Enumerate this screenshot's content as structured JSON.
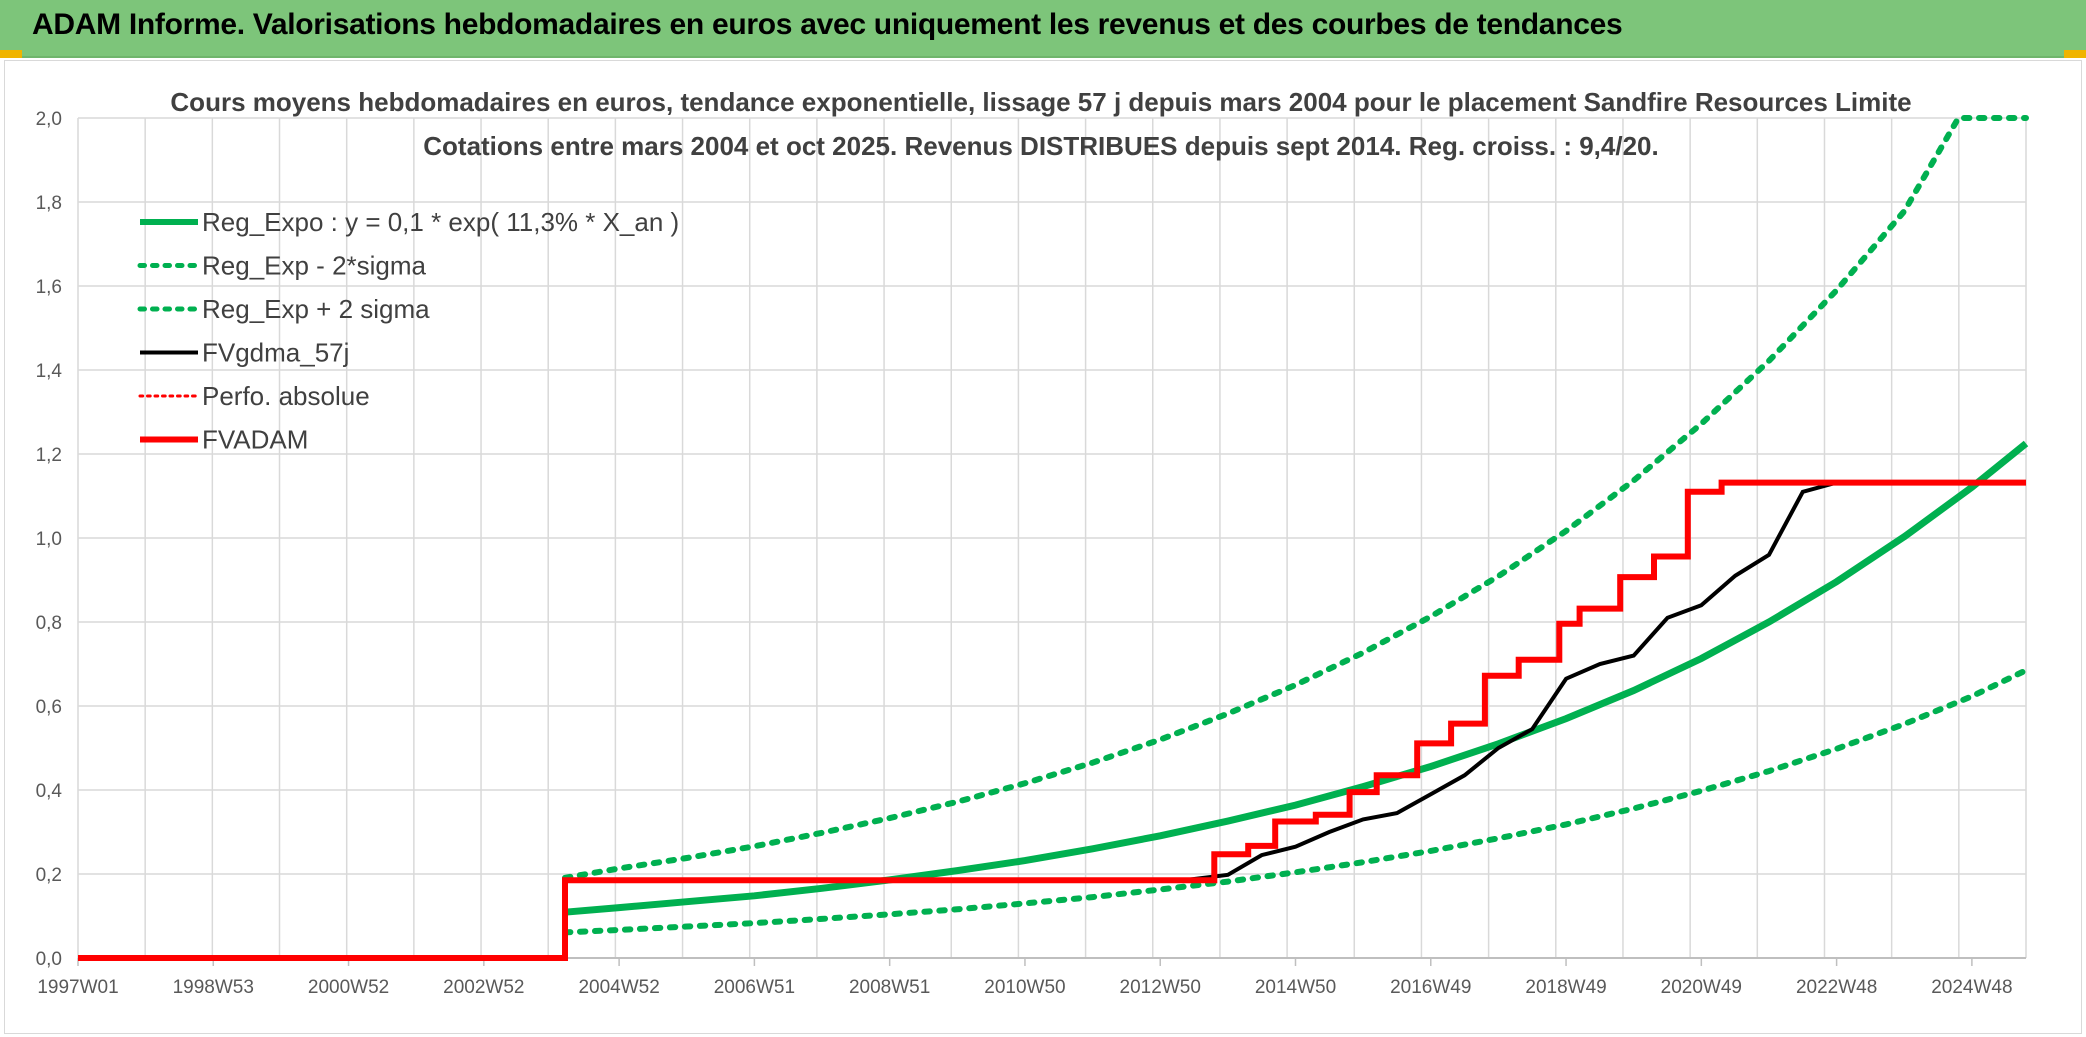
{
  "banner": {
    "title": "ADAM Informe. Valorisations hebdomadaires en euros avec uniquement les revenus et des courbes de tendances"
  },
  "colors": {
    "banner_bg": "#7dc57a",
    "trend_green": "#00b050",
    "fvgdma_black": "#000000",
    "fvadam_red": "#ff0000",
    "grid": "#d9d9d9"
  },
  "chart_data": {
    "type": "line",
    "title_lines": [
      "Cours moyens hebdomadaires en euros, tendance exponentielle, lissage 57 j depuis mars 2004 pour le placement Sandfire Resources Limite",
      "Cotations entre mars 2004 et oct 2025. Revenus DISTRIBUES depuis sept 2014. Reg. croiss. : 9,4/20."
    ],
    "xlim": [
      1997.0,
      2025.8
    ],
    "ylim": [
      0,
      2.0
    ],
    "y_ticks": [
      0.0,
      0.2,
      0.4,
      0.6,
      0.8,
      1.0,
      1.2,
      1.4,
      1.6,
      1.8,
      2.0
    ],
    "y_tick_labels": [
      "0,0",
      "0,2",
      "0,4",
      "0,6",
      "0,8",
      "1,0",
      "1,2",
      "1,4",
      "1,6",
      "1,8",
      "2,0"
    ],
    "x_ticks": [
      {
        "x": 1997.0,
        "label": "1997W01"
      },
      {
        "x": 1999.0,
        "label": "1998W53"
      },
      {
        "x": 2001.0,
        "label": "2000W52"
      },
      {
        "x": 2003.0,
        "label": "2002W52"
      },
      {
        "x": 2005.0,
        "label": "2004W52"
      },
      {
        "x": 2007.0,
        "label": "2006W51"
      },
      {
        "x": 2009.0,
        "label": "2008W51"
      },
      {
        "x": 2011.0,
        "label": "2010W50"
      },
      {
        "x": 2013.0,
        "label": "2012W50"
      },
      {
        "x": 2015.0,
        "label": "2014W50"
      },
      {
        "x": 2017.0,
        "label": "2016W49"
      },
      {
        "x": 2019.0,
        "label": "2018W49"
      },
      {
        "x": 2021.0,
        "label": "2020W49"
      },
      {
        "x": 2023.0,
        "label": "2022W48"
      },
      {
        "x": 2025.0,
        "label": "2024W48"
      }
    ],
    "grid": true,
    "legend_position": "top-left",
    "legend": [
      {
        "label": "Reg_Expo : y = 0,1 * exp( 11,3% *  X_an )",
        "color": "#00b050",
        "style": "solid",
        "width": 6
      },
      {
        "label": "Reg_Exp - 2*sigma",
        "color": "#00b050",
        "style": "dotted",
        "width": 5
      },
      {
        "label": "Reg_Exp + 2 sigma",
        "color": "#00b050",
        "style": "dotted",
        "width": 5
      },
      {
        "label": "FVgdma_57j",
        "color": "#000000",
        "style": "solid",
        "width": 4
      },
      {
        "label": "Perfo. absolue",
        "color": "#ff0000",
        "style": "dotted",
        "width": 3
      },
      {
        "label": "FVADAM",
        "color": "#ff0000",
        "style": "solid",
        "width": 6
      }
    ],
    "series": [
      {
        "name": "Reg_Expo : y = 0,1 * exp( 11,3% *  X_an )",
        "color": "#00b050",
        "style": "solid",
        "width": 7,
        "points": [
          [
            2004.2,
            0.109
          ],
          [
            2005,
            0.12
          ],
          [
            2006,
            0.134
          ],
          [
            2007,
            0.148
          ],
          [
            2008,
            0.166
          ],
          [
            2009,
            0.186
          ],
          [
            2010,
            0.208
          ],
          [
            2011,
            0.232
          ],
          [
            2012,
            0.26
          ],
          [
            2013,
            0.291
          ],
          [
            2014,
            0.326
          ],
          [
            2015,
            0.364
          ],
          [
            2016,
            0.408
          ],
          [
            2017,
            0.456
          ],
          [
            2018,
            0.51
          ],
          [
            2019,
            0.57
          ],
          [
            2020,
            0.637
          ],
          [
            2021,
            0.713
          ],
          [
            2022,
            0.8
          ],
          [
            2023,
            0.896
          ],
          [
            2024,
            1.003
          ],
          [
            2025,
            1.121
          ],
          [
            2025.8,
            1.225
          ]
        ]
      },
      {
        "name": "Reg_Exp - 2*sigma",
        "color": "#00b050",
        "style": "dotted",
        "width": 6,
        "points": [
          [
            2004.2,
            0.061
          ],
          [
            2005,
            0.067
          ],
          [
            2006,
            0.075
          ],
          [
            2007,
            0.083
          ],
          [
            2008,
            0.093
          ],
          [
            2009,
            0.104
          ],
          [
            2010,
            0.116
          ],
          [
            2011,
            0.13
          ],
          [
            2012,
            0.145
          ],
          [
            2013,
            0.163
          ],
          [
            2014,
            0.182
          ],
          [
            2015,
            0.204
          ],
          [
            2016,
            0.228
          ],
          [
            2017,
            0.255
          ],
          [
            2018,
            0.285
          ],
          [
            2019,
            0.318
          ],
          [
            2020,
            0.356
          ],
          [
            2021,
            0.398
          ],
          [
            2022,
            0.445
          ],
          [
            2023,
            0.498
          ],
          [
            2024,
            0.557
          ],
          [
            2025,
            0.623
          ],
          [
            2025.8,
            0.685
          ]
        ]
      },
      {
        "name": "Reg_Exp + 2 sigma",
        "color": "#00b050",
        "style": "dotted",
        "width": 6,
        "points": [
          [
            2004.2,
            0.191
          ],
          [
            2005,
            0.213
          ],
          [
            2006,
            0.238
          ],
          [
            2007,
            0.266
          ],
          [
            2008,
            0.298
          ],
          [
            2009,
            0.333
          ],
          [
            2010,
            0.372
          ],
          [
            2011,
            0.416
          ],
          [
            2012,
            0.465
          ],
          [
            2013,
            0.52
          ],
          [
            2014,
            0.582
          ],
          [
            2015,
            0.65
          ],
          [
            2016,
            0.727
          ],
          [
            2017,
            0.813
          ],
          [
            2018,
            0.909
          ],
          [
            2019,
            1.017
          ],
          [
            2020,
            1.137
          ],
          [
            2021,
            1.272
          ],
          [
            2022,
            1.422
          ],
          [
            2023,
            1.59
          ],
          [
            2024,
            1.778
          ],
          [
            2024.8,
            2.0
          ],
          [
            2025.8,
            2.0
          ]
        ]
      },
      {
        "name": "FVgdma_57j",
        "color": "#000000",
        "style": "solid",
        "width": 4,
        "points": [
          [
            1997,
            0
          ],
          [
            2004.2,
            0
          ],
          [
            2004.2,
            0.186
          ],
          [
            2013.4,
            0.186
          ],
          [
            2014,
            0.198
          ],
          [
            2014.5,
            0.245
          ],
          [
            2015,
            0.265
          ],
          [
            2015.5,
            0.3
          ],
          [
            2016,
            0.33
          ],
          [
            2016.5,
            0.345
          ],
          [
            2017,
            0.39
          ],
          [
            2017.5,
            0.435
          ],
          [
            2018,
            0.5
          ],
          [
            2018.5,
            0.545
          ],
          [
            2019,
            0.665
          ],
          [
            2019.5,
            0.7
          ],
          [
            2020,
            0.72
          ],
          [
            2020.5,
            0.81
          ],
          [
            2021,
            0.84
          ],
          [
            2021.5,
            0.91
          ],
          [
            2022,
            0.96
          ],
          [
            2022.5,
            1.11
          ],
          [
            2023,
            1.132
          ],
          [
            2025.8,
            1.132
          ]
        ]
      },
      {
        "name": "FVADAM",
        "color": "#ff0000",
        "style": "solid",
        "width": 6,
        "points": [
          [
            1997,
            0
          ],
          [
            2004.2,
            0
          ],
          [
            2004.2,
            0.185
          ],
          [
            2013.8,
            0.185
          ],
          [
            2013.8,
            0.247
          ],
          [
            2014.3,
            0.247
          ],
          [
            2014.3,
            0.267
          ],
          [
            2014.7,
            0.267
          ],
          [
            2014.7,
            0.325
          ],
          [
            2015.3,
            0.325
          ],
          [
            2015.3,
            0.341
          ],
          [
            2015.8,
            0.341
          ],
          [
            2015.8,
            0.395
          ],
          [
            2016.2,
            0.395
          ],
          [
            2016.2,
            0.435
          ],
          [
            2016.8,
            0.435
          ],
          [
            2016.8,
            0.511
          ],
          [
            2017.3,
            0.511
          ],
          [
            2017.3,
            0.558
          ],
          [
            2017.8,
            0.558
          ],
          [
            2017.8,
            0.672
          ],
          [
            2018.3,
            0.672
          ],
          [
            2018.3,
            0.71
          ],
          [
            2018.9,
            0.71
          ],
          [
            2018.9,
            0.796
          ],
          [
            2019.2,
            0.796
          ],
          [
            2019.2,
            0.832
          ],
          [
            2019.8,
            0.832
          ],
          [
            2019.8,
            0.907
          ],
          [
            2020.3,
            0.907
          ],
          [
            2020.3,
            0.956
          ],
          [
            2020.8,
            0.956
          ],
          [
            2020.8,
            1.11
          ],
          [
            2021.3,
            1.11
          ],
          [
            2021.3,
            1.132
          ],
          [
            2025.8,
            1.132
          ]
        ]
      }
    ]
  }
}
